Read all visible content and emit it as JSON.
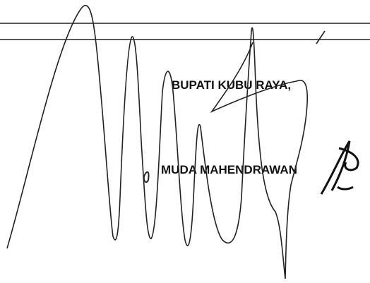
{
  "document": {
    "title": "BUPATI KUBU RAYA,",
    "name": "MUDA MAHENDRAWAN"
  }
}
